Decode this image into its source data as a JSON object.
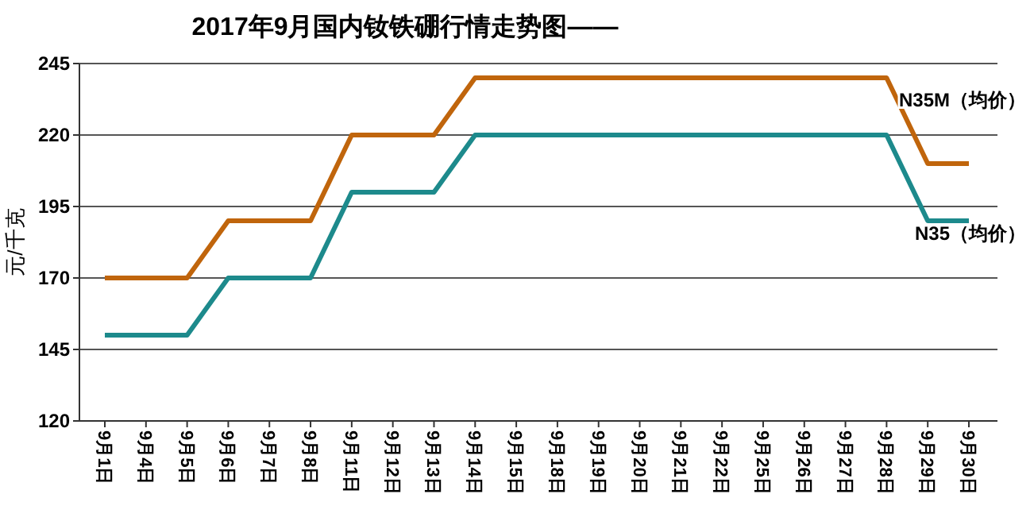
{
  "chart_data": {
    "type": "line",
    "title": "2017年9月国内钕铁硼行情走势图——",
    "ylabel": "元/千克",
    "categories": [
      "9月1日",
      "9月4日",
      "9月5日",
      "9月6日",
      "9月7日",
      "9月8日",
      "9月11日",
      "9月12日",
      "9月13日",
      "9月14日",
      "9月15日",
      "9月18日",
      "9月19日",
      "9月20日",
      "9月21日",
      "9月22日",
      "9月25日",
      "9月26日",
      "9月27日",
      "9月28日",
      "9月29日",
      "9月30日"
    ],
    "series": [
      {
        "name": "N35M（均价）",
        "color": "#c0650c",
        "values": [
          170,
          170,
          170,
          190,
          190,
          190,
          220,
          220,
          220,
          240,
          240,
          240,
          240,
          240,
          240,
          240,
          240,
          240,
          240,
          240,
          210,
          210
        ]
      },
      {
        "name": "N35（均价）",
        "color": "#1d8a8c",
        "values": [
          150,
          150,
          150,
          170,
          170,
          170,
          200,
          200,
          200,
          220,
          220,
          220,
          220,
          220,
          220,
          220,
          220,
          220,
          220,
          220,
          190,
          190
        ]
      }
    ],
    "ylim": [
      120,
      245
    ],
    "yticks": [
      120,
      145,
      170,
      195,
      220,
      245
    ],
    "grid": "y",
    "marker": "none",
    "line_style": "solid"
  }
}
